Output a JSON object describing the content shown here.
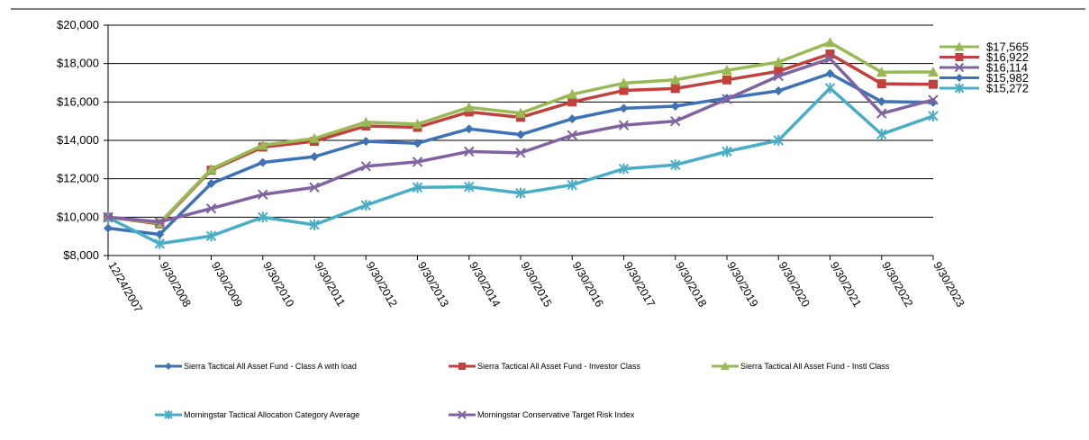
{
  "chart_data": {
    "type": "line",
    "categories": [
      "12/24/2007",
      "9/30/2008",
      "9/30/2009",
      "9/30/2010",
      "9/30/2011",
      "9/30/2012",
      "9/30/2013",
      "9/30/2014",
      "9/30/2015",
      "9/30/2016",
      "9/30/2017",
      "9/30/2018",
      "9/30/2019",
      "9/30/2020",
      "9/30/2021",
      "9/30/2022",
      "9/30/2023"
    ],
    "ylim": [
      8000,
      20000
    ],
    "yticks": [
      8000,
      10000,
      12000,
      14000,
      16000,
      18000,
      20000
    ],
    "ytick_labels": [
      "$8,000",
      "$10,000",
      "$12,000",
      "$14,000",
      "$16,000",
      "$18,000",
      "$20,000"
    ],
    "grid": true,
    "legend_position": "bottom",
    "series": [
      {
        "name": "Sierra Tactical All Asset Fund - Class A with load",
        "color": "#3d72b6",
        "marker": "diamond",
        "values": [
          9425,
          9100,
          11750,
          12850,
          13150,
          13950,
          13850,
          14600,
          14300,
          15120,
          15670,
          15780,
          16200,
          16580,
          17480,
          16020,
          15982
        ],
        "end_label": "$15,982"
      },
      {
        "name": "Sierra Tactical All Asset Fund - Investor Class",
        "color": "#c1423d",
        "marker": "square",
        "values": [
          10000,
          9650,
          12450,
          13650,
          13950,
          14750,
          14680,
          15480,
          15200,
          16000,
          16600,
          16700,
          17150,
          17600,
          18500,
          16950,
          16922
        ],
        "end_label": "$16,922"
      },
      {
        "name": "Sierra Tactical All Asset Fund -  Instl Class",
        "color": "#98b954",
        "marker": "triangle",
        "values": [
          10000,
          9700,
          12500,
          13750,
          14100,
          14950,
          14850,
          15720,
          15420,
          16400,
          16980,
          17150,
          17650,
          18080,
          19100,
          17550,
          17565
        ],
        "end_label": "$17,565"
      },
      {
        "name": "Morningstar Tactical Allocation Category Average",
        "color": "#4aadc6",
        "marker": "star",
        "values": [
          9980,
          8620,
          9020,
          10000,
          9600,
          10620,
          11550,
          11580,
          11250,
          11680,
          12520,
          12720,
          13420,
          14000,
          16720,
          14320,
          15272
        ],
        "end_label": "$15,272"
      },
      {
        "name": "Morningstar Conservative Target Risk Index",
        "color": "#8064a2",
        "marker": "x",
        "values": [
          10000,
          9750,
          10450,
          11180,
          11550,
          12650,
          12880,
          13420,
          13350,
          14270,
          14790,
          15000,
          16150,
          17350,
          18250,
          15400,
          16114
        ],
        "end_label": "$16,114"
      }
    ],
    "end_label_order": [
      "$17,565",
      "$16,922",
      "$16,114",
      "$15,982",
      "$15,272"
    ],
    "end_label_colors": [
      "#98b954",
      "#c1423d",
      "#8064a2",
      "#3d72b6",
      "#4aadc6"
    ],
    "end_label_markers": [
      "triangle",
      "square",
      "x",
      "diamond",
      "star"
    ]
  }
}
